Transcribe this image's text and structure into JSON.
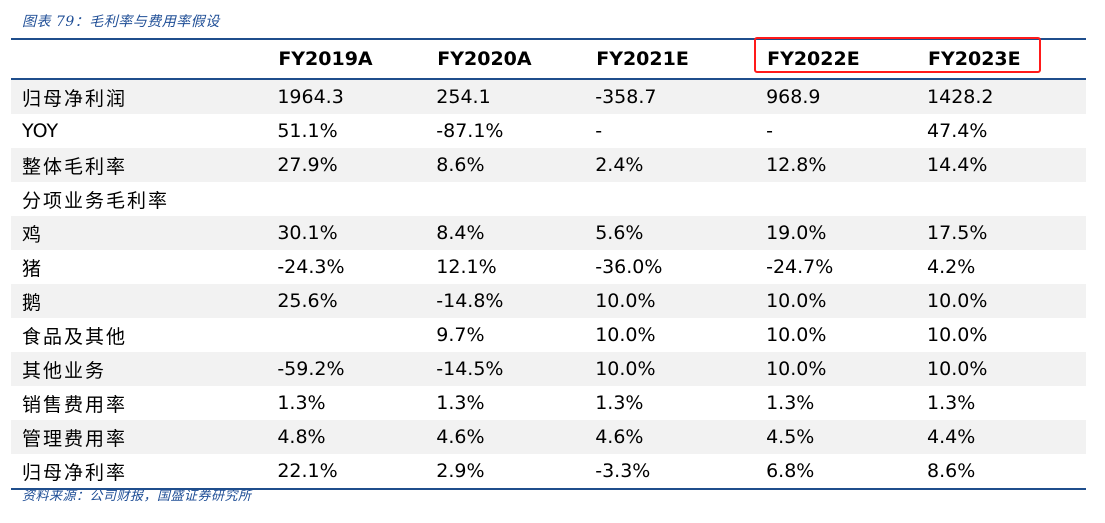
{
  "caption": "图表 79：毛利率与费用率假设",
  "source": "资料来源：公司财报，国盛证券研究所",
  "highlight_color": "#ff1a1a",
  "rule_color": "#1f4e8c",
  "caption_color": "#1f4e96",
  "table": {
    "columns": [
      "",
      "FY2019A",
      "FY2020A",
      "FY2021E",
      "FY2022E",
      "FY2023E"
    ],
    "rows": [
      {
        "label": "归母净利润",
        "values": [
          "1964.3",
          "254.1",
          "-358.7",
          "968.9",
          "1428.2"
        ]
      },
      {
        "label": "YOY",
        "values": [
          "51.1%",
          "-87.1%",
          "-",
          "-",
          "47.4%"
        ]
      },
      {
        "label": "整体毛利率",
        "values": [
          "27.9%",
          "8.6%",
          "2.4%",
          "12.8%",
          "14.4%"
        ]
      },
      {
        "label": "分项业务毛利率",
        "values": [
          "",
          "",
          "",
          "",
          ""
        ]
      },
      {
        "label": "鸡",
        "values": [
          "30.1%",
          "8.4%",
          "5.6%",
          "19.0%",
          "17.5%"
        ]
      },
      {
        "label": "猪",
        "values": [
          "-24.3%",
          "12.1%",
          "-36.0%",
          "-24.7%",
          "4.2%"
        ]
      },
      {
        "label": "鹅",
        "values": [
          "25.6%",
          "-14.8%",
          "10.0%",
          "10.0%",
          "10.0%"
        ]
      },
      {
        "label": "食品及其他",
        "values": [
          "",
          "9.7%",
          "10.0%",
          "10.0%",
          "10.0%"
        ]
      },
      {
        "label": "其他业务",
        "values": [
          "-59.2%",
          "-14.5%",
          "10.0%",
          "10.0%",
          "10.0%"
        ]
      },
      {
        "label": "销售费用率",
        "values": [
          "1.3%",
          "1.3%",
          "1.3%",
          "1.3%",
          "1.3%"
        ]
      },
      {
        "label": "管理费用率",
        "values": [
          "4.8%",
          "4.6%",
          "4.6%",
          "4.5%",
          "4.4%"
        ]
      },
      {
        "label": "归母净利率",
        "values": [
          "22.1%",
          "2.9%",
          "-3.3%",
          "6.8%",
          "8.6%"
        ]
      }
    ],
    "highlighted": {
      "row": "归母净利润",
      "columns": [
        "FY2022E",
        "FY2023E"
      ]
    }
  }
}
